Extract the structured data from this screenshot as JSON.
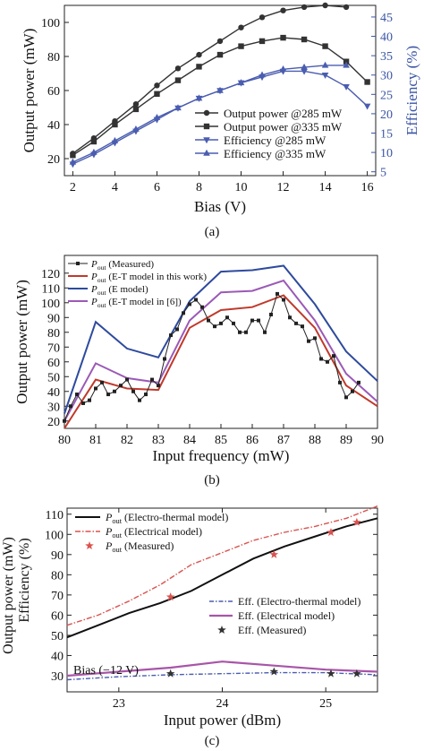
{
  "chart_data": [
    {
      "type": "line",
      "panel_label": "(a)",
      "xlabel": "Bias (V)",
      "ylabel": "Output power (mW)",
      "ylabel_right": "Efficiency (%)",
      "xlim": [
        1.6,
        16.4
      ],
      "ylim": [
        10,
        110
      ],
      "ylim_right": [
        4,
        48
      ],
      "xticks": [
        2,
        4,
        6,
        8,
        10,
        12,
        14,
        16
      ],
      "yticks": [
        20,
        40,
        60,
        80,
        100
      ],
      "yticks_right": [
        5,
        10,
        15,
        20,
        25,
        30,
        35,
        40,
        45
      ],
      "right_axis_color": "#3a55a4",
      "legend_position": "center-right",
      "series": [
        {
          "name": "Output power @285 mW",
          "axis": "left",
          "marker": "circle",
          "color": "#333333",
          "x": [
            2,
            3,
            4,
            5,
            6,
            7,
            8,
            9,
            10,
            11,
            12,
            13,
            14,
            15
          ],
          "y": [
            23,
            32,
            42,
            52,
            63,
            73,
            81,
            89,
            97,
            103,
            107,
            109,
            110,
            109
          ]
        },
        {
          "name": "Output power @335 mW",
          "axis": "left",
          "marker": "square",
          "color": "#333333",
          "x": [
            2,
            3,
            4,
            5,
            6,
            7,
            8,
            9,
            10,
            11,
            12,
            13,
            14,
            15,
            16
          ],
          "y": [
            22,
            30,
            40,
            49,
            58,
            66,
            74,
            81,
            86,
            89,
            91,
            90,
            86,
            77,
            65
          ]
        },
        {
          "name": "Efficiency @285 mW",
          "axis": "right",
          "marker": "triangle-down",
          "color": "#4a5db0",
          "x": [
            2,
            3,
            4,
            5,
            6,
            7,
            8,
            9,
            10,
            11,
            12,
            13,
            14,
            15,
            16
          ],
          "y": [
            7,
            9.5,
            12.5,
            15.5,
            18.5,
            21.5,
            24,
            26,
            28,
            29.5,
            31,
            31,
            30,
            27,
            22
          ]
        },
        {
          "name": "Efficiency @335 mW",
          "axis": "right",
          "marker": "triangle-up",
          "color": "#4a5db0",
          "x": [
            2,
            3,
            4,
            5,
            6,
            7,
            8,
            9,
            10,
            11,
            12,
            13,
            14,
            15
          ],
          "y": [
            7.5,
            10,
            13,
            16,
            19,
            21.5,
            24,
            26,
            28,
            30,
            31.5,
            32,
            32.5,
            32.5
          ]
        }
      ]
    },
    {
      "type": "line",
      "panel_label": "(b)",
      "xlabel": "Input frequency (mW)",
      "ylabel": "Output power (mW)",
      "xlim": [
        80,
        90
      ],
      "ylim": [
        15,
        132
      ],
      "xticks": [
        80,
        81,
        82,
        83,
        84,
        85,
        86,
        87,
        88,
        89,
        90
      ],
      "yticks": [
        20,
        30,
        40,
        50,
        60,
        70,
        80,
        90,
        100,
        110,
        120
      ],
      "legend_position": "top-left",
      "legend_labels": [
        {
          "main": "P",
          "sub": "out",
          "rest": " (Measured)"
        },
        {
          "main": "P",
          "sub": "out",
          "rest": " (E-T model in this work)"
        },
        {
          "main": "P",
          "sub": "out",
          "rest": " (E model)"
        },
        {
          "main": "P",
          "sub": "out",
          "rest": " (E-T model in [6])"
        }
      ],
      "series": [
        {
          "name": "Pout (Measured)",
          "color": "#222222",
          "marker": "square-small",
          "x": [
            80,
            80.2,
            80.4,
            80.6,
            80.8,
            81,
            81.2,
            81.4,
            81.6,
            81.8,
            82,
            82.2,
            82.4,
            82.6,
            82.8,
            83,
            83.2,
            83.4,
            83.6,
            83.8,
            84,
            84.2,
            84.4,
            84.6,
            84.8,
            85,
            85.2,
            85.4,
            85.6,
            85.8,
            86,
            86.2,
            86.4,
            86.6,
            86.8,
            87,
            87.2,
            87.4,
            87.6,
            87.8,
            88,
            88.2,
            88.4,
            88.6,
            88.8,
            89,
            89.2,
            89.4
          ],
          "y": [
            20,
            30,
            38,
            32,
            34,
            42,
            46,
            38,
            40,
            44,
            48,
            40,
            34,
            38,
            48,
            44,
            62,
            78,
            82,
            93,
            99,
            102,
            97,
            88,
            84,
            86,
            90,
            86,
            80,
            80,
            88,
            88,
            80,
            92,
            106,
            102,
            90,
            86,
            84,
            74,
            76,
            62,
            60,
            64,
            46,
            36,
            40,
            46
          ]
        },
        {
          "name": "Pout (E-T model in this work)",
          "color": "#c0392b",
          "x": [
            80,
            81,
            82,
            83,
            84,
            85,
            86,
            87,
            88,
            89,
            90
          ],
          "y": [
            15,
            48,
            42,
            41,
            83,
            95,
            97,
            105,
            83,
            44,
            30
          ]
        },
        {
          "name": "Pout (E model)",
          "color": "#2e4a9e",
          "x": [
            80,
            81,
            82,
            83,
            84,
            85,
            86,
            87,
            88,
            89,
            90
          ],
          "y": [
            25,
            87,
            69,
            63,
            101,
            121,
            122,
            125,
            99,
            67,
            47
          ]
        },
        {
          "name": "Pout (E-T model in [6])",
          "color": "#9b59b6",
          "x": [
            80,
            81,
            82,
            83,
            84,
            85,
            86,
            87,
            88,
            89,
            90
          ],
          "y": [
            20,
            59,
            49,
            46,
            88,
            107,
            108,
            115,
            88,
            52,
            33
          ]
        }
      ]
    },
    {
      "type": "line",
      "panel_label": "(c)",
      "xlabel": "Input power (dBm)",
      "ylabel": "Output power (mW)",
      "ylabel2": "Efficiency (%)",
      "xlim": [
        22.5,
        25.5
      ],
      "ylim": [
        22,
        113
      ],
      "xticks": [
        23,
        24,
        25
      ],
      "yticks": [
        30,
        40,
        50,
        60,
        70,
        80,
        90,
        100,
        110
      ],
      "annotation": "Bias (−12 V)",
      "legend_top": [
        {
          "main": "P",
          "sub": "out",
          "rest": " (Electro-thermal model)"
        },
        {
          "main": "P",
          "sub": "out",
          "rest": " (Electrical model)"
        },
        {
          "main": "P",
          "sub": "out",
          "rest": " (Measured)"
        }
      ],
      "legend_bottom": [
        "Eff. (Electro-thermal model)",
        "Eff. (Electrical model)",
        "Eff. (Measured)"
      ],
      "series": [
        {
          "name": "Pout (Electro-thermal model)",
          "color": "#111111",
          "x": [
            22.5,
            22.8,
            23.1,
            23.4,
            23.7,
            24.0,
            24.3,
            24.6,
            24.9,
            25.2,
            25.5
          ],
          "y": [
            49,
            55,
            61,
            66,
            72,
            80,
            88,
            94,
            99,
            104,
            108
          ]
        },
        {
          "name": "Pout (Electrical model)",
          "color": "#d9534f",
          "x": [
            22.5,
            22.8,
            23.1,
            23.4,
            23.7,
            24.0,
            24.3,
            24.6,
            24.9,
            25.2,
            25.5
          ],
          "y": [
            55,
            60,
            67,
            75,
            85,
            91,
            97,
            101,
            104,
            108,
            114
          ]
        },
        {
          "name": "Pout (Measured)",
          "color": "#d9534f",
          "marker": "star",
          "x": [
            23.5,
            24.5,
            25.05,
            25.3
          ],
          "y": [
            69,
            90,
            101,
            106
          ]
        },
        {
          "name": "Eff. (Electro-thermal model)",
          "color": "#4a5db0",
          "x": [
            22.5,
            23.0,
            23.5,
            24.0,
            24.5,
            25.0,
            25.5
          ],
          "y": [
            28,
            29.5,
            30.5,
            31,
            31.5,
            31.5,
            30.5
          ]
        },
        {
          "name": "Eff. (Electrical model)",
          "color": "#a855a8",
          "x": [
            22.5,
            23.0,
            23.5,
            24.0,
            24.5,
            25.0,
            25.5
          ],
          "y": [
            30,
            32,
            34,
            37,
            35,
            33,
            32
          ]
        },
        {
          "name": "Eff. (Measured)",
          "color": "#333333",
          "marker": "star",
          "x": [
            23.5,
            24.5,
            25.05,
            25.3
          ],
          "y": [
            31,
            32,
            31,
            31
          ]
        }
      ]
    }
  ]
}
